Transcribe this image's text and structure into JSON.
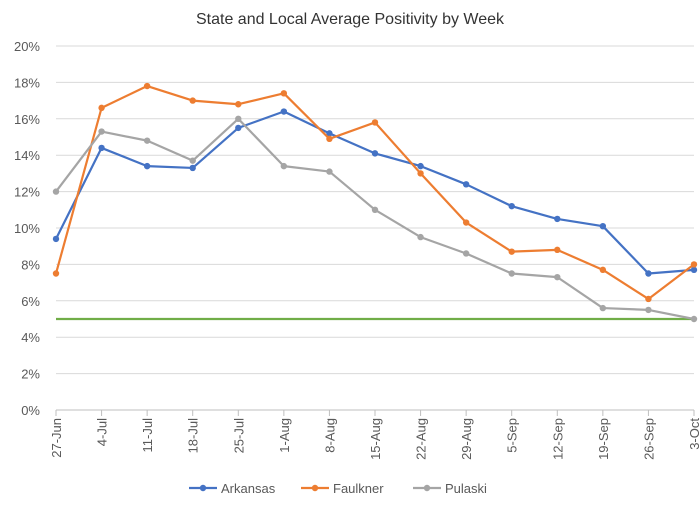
{
  "chart_data": {
    "type": "line",
    "title": "State and Local Average Positivity by Week",
    "xlabel": "",
    "ylabel": "",
    "ylim": [
      0,
      20
    ],
    "yticks": [
      "0%",
      "2%",
      "4%",
      "6%",
      "8%",
      "10%",
      "12%",
      "14%",
      "16%",
      "18%",
      "20%"
    ],
    "categories": [
      "27-Jun",
      "4-Jul",
      "11-Jul",
      "18-Jul",
      "25-Jul",
      "1-Aug",
      "8-Aug",
      "15-Aug",
      "22-Aug",
      "29-Aug",
      "5-Sep",
      "12-Sep",
      "19-Sep",
      "26-Sep",
      "3-Oct"
    ],
    "series": [
      {
        "name": "Arkansas",
        "color": "#4472C4",
        "values": [
          9.4,
          14.4,
          13.4,
          13.3,
          15.5,
          16.4,
          15.2,
          14.1,
          13.4,
          12.4,
          11.2,
          10.5,
          10.1,
          7.5,
          7.7
        ]
      },
      {
        "name": "Faulkner",
        "color": "#ED7D31",
        "values": [
          7.5,
          16.6,
          17.8,
          17.0,
          16.8,
          17.4,
          14.9,
          15.8,
          13.0,
          10.3,
          8.7,
          8.8,
          7.7,
          6.1,
          8.0
        ]
      },
      {
        "name": "Pulaski",
        "color": "#A5A5A5",
        "values": [
          12.0,
          15.3,
          14.8,
          13.7,
          16.0,
          13.4,
          13.1,
          11.0,
          9.5,
          8.6,
          7.5,
          7.3,
          5.6,
          5.5,
          5.0
        ]
      }
    ],
    "reference_line": {
      "value": 5.0,
      "color": "#70AD47"
    },
    "legend": {
      "position": "bottom"
    },
    "grid": true
  }
}
